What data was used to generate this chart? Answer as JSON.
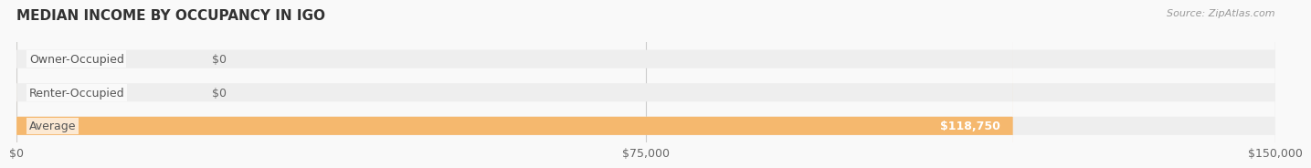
{
  "title": "MEDIAN INCOME BY OCCUPANCY IN IGO",
  "source": "Source: ZipAtlas.com",
  "categories": [
    "Owner-Occupied",
    "Renter-Occupied",
    "Average"
  ],
  "values": [
    0,
    0,
    118750
  ],
  "bar_colors": [
    "#7dd4d4",
    "#c8a8d8",
    "#f5b86e"
  ],
  "bar_bg_color": "#eeeeee",
  "xlim": [
    0,
    150000
  ],
  "xticks": [
    0,
    75000,
    150000
  ],
  "xtick_labels": [
    "$0",
    "$75,000",
    "$150,000"
  ],
  "value_labels": [
    "$0",
    "$0",
    "$118,750"
  ],
  "title_fontsize": 11,
  "label_fontsize": 9,
  "tick_fontsize": 9,
  "source_fontsize": 8,
  "bar_height": 0.55,
  "background_color": "#f9f9f9",
  "title_color": "#333333",
  "label_color": "#555555",
  "value_label_color_inside": "#ffffff",
  "value_label_color_outside": "#666666"
}
